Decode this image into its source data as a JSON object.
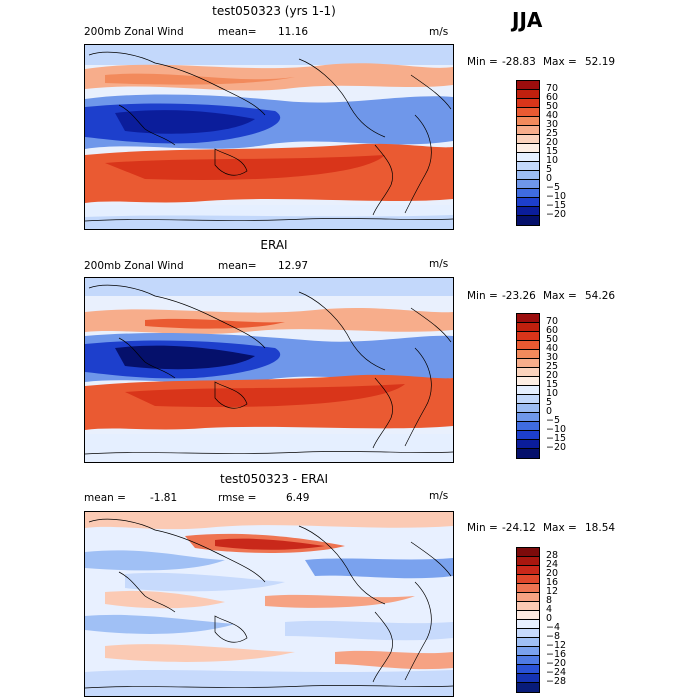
{
  "season": "JJA",
  "panels": [
    {
      "title": "test050323 (yrs 1-1)",
      "left_label": "200mb Zonal Wind",
      "mean_label": "mean=",
      "mean_value": "11.16",
      "units": "m/s",
      "min_label": "Min =",
      "min_value": "-28.83",
      "max_label": "Max =",
      "max_value": "52.19",
      "levels": [
        "70",
        "60",
        "50",
        "40",
        "30",
        "25",
        "20",
        "15",
        "10",
        "5",
        "0",
        "−5",
        "−10",
        "−15",
        "−20"
      ],
      "colors": [
        "#9b0d0d",
        "#c0200e",
        "#d9351a",
        "#ea5a32",
        "#f28a5c",
        "#f7ad8b",
        "#fbd3bd",
        "#fdeee4",
        "#e5efff",
        "#c3d8fb",
        "#9cbcf3",
        "#6f97ea",
        "#3f6ce0",
        "#1d3fcc",
        "#0b1d9b",
        "#05106b"
      ]
    },
    {
      "title": "ERAI",
      "left_label": "200mb Zonal Wind",
      "mean_label": "mean=",
      "mean_value": "12.97",
      "units": "m/s",
      "min_label": "Min =",
      "min_value": "-23.26",
      "max_label": "Max =",
      "max_value": "54.26",
      "levels": [
        "70",
        "60",
        "50",
        "40",
        "30",
        "25",
        "20",
        "15",
        "10",
        "5",
        "0",
        "−5",
        "−10",
        "−15",
        "−20"
      ],
      "colors": [
        "#9b0d0d",
        "#c0200e",
        "#d9351a",
        "#ea5a32",
        "#f28a5c",
        "#f7ad8b",
        "#fbd3bd",
        "#fdeee4",
        "#e5efff",
        "#c3d8fb",
        "#9cbcf3",
        "#6f97ea",
        "#3f6ce0",
        "#1d3fcc",
        "#0b1d9b",
        "#05106b"
      ]
    },
    {
      "title": "test050323 - ERAI",
      "left_label": "",
      "mean_label": "mean =",
      "mean_value": "-1.81",
      "rmse_label": "rmse =",
      "rmse_value": "6.49",
      "units": "m/s",
      "min_label": "Min =",
      "min_value": "-24.12",
      "max_label": "Max =",
      "max_value": "18.54",
      "levels": [
        "28",
        "24",
        "20",
        "16",
        "12",
        "8",
        "4",
        "0",
        "−4",
        "−8",
        "−12",
        "−16",
        "−20",
        "−24",
        "−28"
      ],
      "colors": [
        "#7d0b0b",
        "#a8170f",
        "#c9281a",
        "#e0472b",
        "#ee7452",
        "#f6a283",
        "#fbcab4",
        "#fdeae1",
        "#e8f0ff",
        "#c7dafc",
        "#a0c0f5",
        "#7aa2ee",
        "#4f7be4",
        "#2a52d6",
        "#1533b3",
        "#081c7a"
      ]
    }
  ]
}
